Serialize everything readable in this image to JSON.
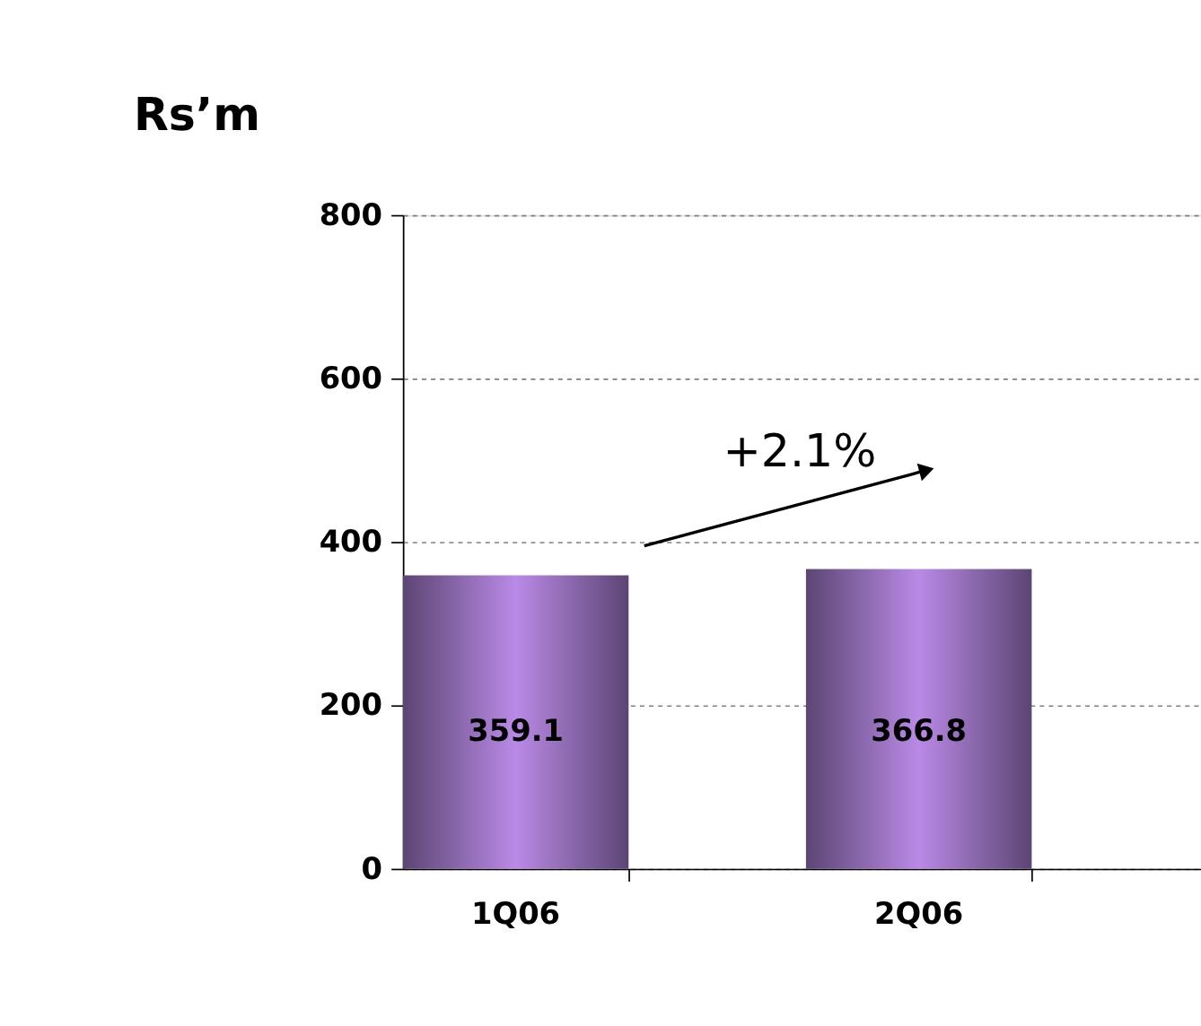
{
  "chart_data": {
    "type": "bar",
    "title": "Rs’m",
    "categories": [
      "1Q06",
      "2Q06"
    ],
    "values": [
      359.1,
      366.8
    ],
    "color": "#b98ae6",
    "ylim": [
      0,
      800
    ],
    "yticks": [
      0,
      200,
      400,
      600,
      800
    ],
    "grid": "y",
    "data_labels": true,
    "annotations": [
      "+2.1%"
    ]
  }
}
